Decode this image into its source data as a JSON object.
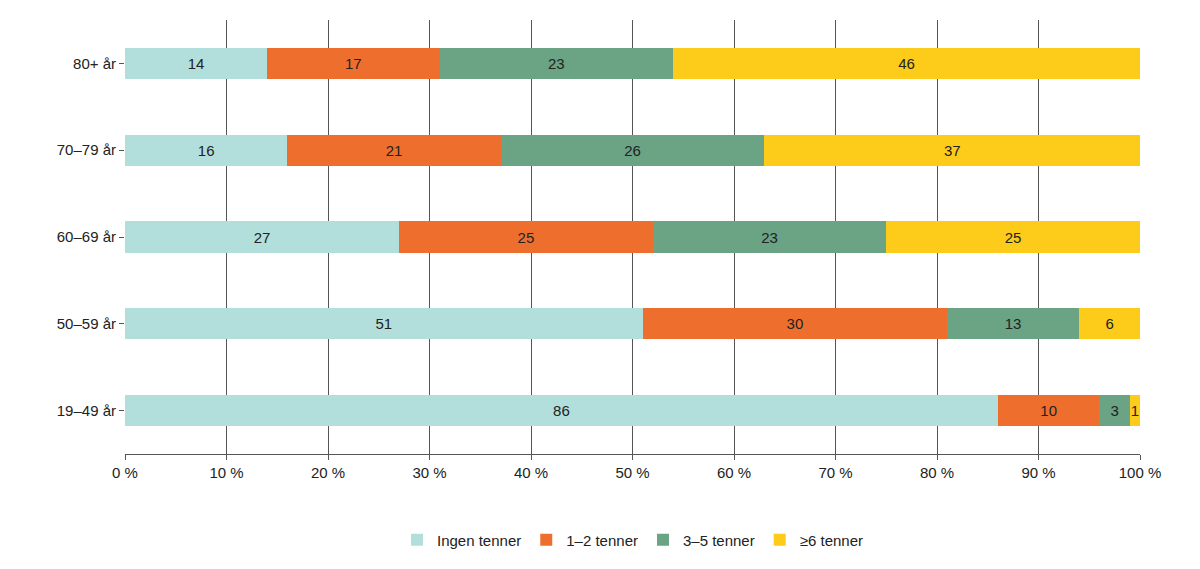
{
  "chart_data": {
    "type": "bar",
    "orientation": "horizontal",
    "stacked": true,
    "data_labels": true,
    "grid": true,
    "legend": "bottom",
    "categories": [
      "80+ år",
      "70–79 år",
      "60–69 år",
      "50–59 år",
      "19–49 år"
    ],
    "series": [
      {
        "name": "Ingen tenner",
        "color": "#b2dfdc",
        "values": [
          14,
          16,
          27,
          51,
          86
        ]
      },
      {
        "name": "1–2 tenner",
        "color": "#ee6f2d",
        "values": [
          17,
          21,
          25,
          30,
          10
        ]
      },
      {
        "name": "3–5 tenner",
        "color": "#6ba385",
        "values": [
          23,
          26,
          23,
          13,
          3
        ]
      },
      {
        "name": "≥6 tenner",
        "color": "#fdcb1a",
        "values": [
          46,
          37,
          25,
          6,
          1
        ]
      }
    ],
    "xlim": [
      0,
      100
    ],
    "xticks": [
      {
        "value": 0,
        "label": "0 %"
      },
      {
        "value": 10,
        "label": "10 %"
      },
      {
        "value": 20,
        "label": "20 %"
      },
      {
        "value": 30,
        "label": "30 %"
      },
      {
        "value": 40,
        "label": "40 %"
      },
      {
        "value": 50,
        "label": "50 %"
      },
      {
        "value": 60,
        "label": "60 %"
      },
      {
        "value": 70,
        "label": "70 %"
      },
      {
        "value": 80,
        "label": "80 %"
      },
      {
        "value": 90,
        "label": "90 %"
      },
      {
        "value": 100,
        "label": "100 %"
      }
    ]
  }
}
